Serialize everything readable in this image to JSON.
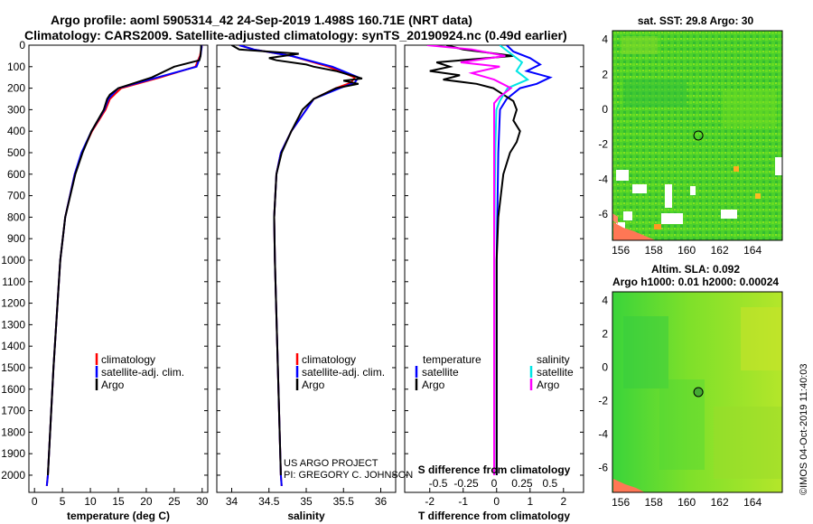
{
  "header": {
    "line1": "Argo profile: aoml 5905314_42 24-Sep-2019 1.498S 160.71E (NRT data)",
    "line2": "Climatology: CARS2009. Satellite-adjusted climatology: synTS_20190924.nc (0.49d earlier)"
  },
  "credits": {
    "project": "US ARGO PROJECT",
    "pi": "PI: GREGORY C. JOHNSON",
    "stamp": "©IMOS 04-Oct-2019 11:40:03"
  },
  "colors": {
    "climatology": "#ff0000",
    "satellite": "#0000ff",
    "argo": "#000000",
    "sal_satellite": "#00e5e5",
    "sal_argo": "#ff00ff",
    "map_green": "#44cc22"
  },
  "chart_data": [
    {
      "id": "temperature",
      "type": "line",
      "xlabel": "temperature (deg C)",
      "ylabel": "",
      "xlim": [
        -1,
        31
      ],
      "ylim": [
        2080,
        0
      ],
      "xticks": [
        "0",
        "5",
        "10",
        "15",
        "20",
        "25",
        "30"
      ],
      "yticks": [
        "0",
        "100",
        "200",
        "300",
        "400",
        "500",
        "600",
        "700",
        "800",
        "900",
        "1000",
        "1100",
        "1200",
        "1300",
        "1400",
        "1500",
        "1600",
        "1700",
        "1800",
        "1900",
        "2000"
      ],
      "legend": [
        "climatology",
        "satellite-adj. clim.",
        "Argo"
      ],
      "series": [
        {
          "name": "climatology",
          "depth": [
            0,
            10,
            50,
            100,
            150,
            200,
            250,
            300,
            400,
            500,
            600,
            800,
            1000,
            1500,
            2000,
            2050
          ],
          "values": [
            29.9,
            29.9,
            29.6,
            28.8,
            22.5,
            15.5,
            13.5,
            12.7,
            10.3,
            8.5,
            7.2,
            5.5,
            4.6,
            3.4,
            2.4,
            2.2
          ]
        },
        {
          "name": "satellite-adj. clim.",
          "depth": [
            0,
            10,
            50,
            100,
            150,
            200,
            250,
            300,
            400,
            500,
            600,
            800,
            1000,
            1500,
            2000,
            2050
          ],
          "values": [
            29.9,
            29.9,
            29.7,
            29.0,
            22.0,
            15.0,
            13.2,
            12.5,
            10.2,
            8.4,
            7.2,
            5.5,
            4.6,
            3.4,
            2.4,
            2.2
          ]
        },
        {
          "name": "Argo",
          "depth": [
            0,
            10,
            50,
            70,
            100,
            150,
            200,
            230,
            250,
            300,
            400,
            500,
            600,
            800,
            1000,
            1500,
            2000
          ],
          "values": [
            29.8,
            29.8,
            29.7,
            29.5,
            25.0,
            21.0,
            15.0,
            13.5,
            13.0,
            12.4,
            10.2,
            8.6,
            7.3,
            5.5,
            4.6,
            3.4,
            2.4
          ]
        }
      ]
    },
    {
      "id": "salinity",
      "type": "line",
      "xlabel": "salinity",
      "xlim": [
        33.8,
        36.2
      ],
      "ylim": [
        2080,
        0
      ],
      "xticks": [
        "34",
        "34.5",
        "35",
        "35.5",
        "36"
      ],
      "legend": [
        "climatology",
        "satellite-adj. clim.",
        "Argo"
      ],
      "series": [
        {
          "name": "climatology",
          "depth": [
            0,
            20,
            50,
            100,
            150,
            175,
            200,
            250,
            300,
            400,
            500,
            600,
            800,
            1000,
            1500,
            2000,
            2050
          ],
          "values": [
            34.1,
            34.3,
            34.8,
            35.3,
            35.65,
            35.6,
            35.4,
            35.1,
            35.0,
            34.8,
            34.66,
            34.6,
            34.57,
            34.58,
            34.62,
            34.66,
            34.67
          ]
        },
        {
          "name": "satellite-adj. clim.",
          "depth": [
            0,
            20,
            50,
            100,
            150,
            175,
            200,
            250,
            300,
            400,
            500,
            600,
            800,
            1000,
            1500,
            2000,
            2050
          ],
          "values": [
            34.1,
            34.3,
            34.8,
            35.35,
            35.7,
            35.65,
            35.45,
            35.1,
            35.0,
            34.8,
            34.66,
            34.6,
            34.57,
            34.58,
            34.62,
            34.66,
            34.67
          ]
        },
        {
          "name": "Argo",
          "depth": [
            0,
            20,
            40,
            60,
            70,
            90,
            100,
            120,
            140,
            155,
            165,
            180,
            200,
            250,
            300,
            400,
            500,
            600,
            800,
            1000,
            1500,
            2000
          ],
          "values": [
            34.0,
            34.1,
            34.9,
            34.5,
            34.6,
            35.0,
            35.1,
            35.4,
            35.6,
            35.75,
            35.5,
            35.7,
            35.4,
            35.1,
            34.95,
            34.8,
            34.67,
            34.6,
            34.57,
            34.58,
            34.62,
            34.66
          ]
        }
      ]
    },
    {
      "id": "difference",
      "type": "line",
      "xlabel": "T difference from climatology",
      "x2label": "S difference from climatology",
      "xlim": [
        -2.75,
        2.6
      ],
      "x2lim": [
        -0.8,
        0.8
      ],
      "ylim": [
        2080,
        0
      ],
      "xticks": [
        "-2",
        "-1",
        "0",
        "1",
        "2"
      ],
      "x2ticks": [
        "-0.5",
        "-0.25",
        "0",
        "0.25",
        "0.5"
      ],
      "legend_headers": [
        "temperature",
        "salinity"
      ],
      "legend_left": [
        "satellite",
        "Argo"
      ],
      "legend_right": [
        "satellite",
        "Argo"
      ],
      "series": [
        {
          "name": "T satellite",
          "depth": [
            0,
            30,
            60,
            90,
            120,
            150,
            180,
            200,
            250,
            300,
            500,
            1000,
            2000
          ],
          "values": [
            0.3,
            0.5,
            1.0,
            1.3,
            0.9,
            1.6,
            1.2,
            0.7,
            0.3,
            0.1,
            0.05,
            0.0,
            0.0
          ]
        },
        {
          "name": "T Argo",
          "depth": [
            0,
            20,
            50,
            80,
            100,
            120,
            140,
            160,
            180,
            200,
            230,
            260,
            300,
            350,
            400,
            450,
            500,
            600,
            800,
            1000,
            2000
          ],
          "values": [
            -1.5,
            -1.0,
            0.5,
            -1.8,
            -1.4,
            -2.0,
            -1.1,
            -1.6,
            -0.6,
            -0.1,
            0.2,
            0.5,
            0.6,
            0.5,
            0.7,
            0.6,
            0.4,
            0.2,
            0.05,
            0.0,
            0.0
          ]
        },
        {
          "name": "S satellite",
          "depth": [
            0,
            40,
            80,
            120,
            160,
            200,
            260,
            300,
            500,
            1000,
            2000
          ],
          "values": [
            0.05,
            0.15,
            0.25,
            0.2,
            0.3,
            0.12,
            0.05,
            0.02,
            0.01,
            0.0,
            0.0
          ]
        },
        {
          "name": "S Argo",
          "depth": [
            0,
            20,
            50,
            80,
            100,
            130,
            160,
            200,
            240,
            270,
            300,
            500,
            1000,
            2000
          ],
          "values": [
            -0.6,
            -0.2,
            0.1,
            -0.3,
            0.05,
            -0.2,
            0.0,
            0.15,
            0.05,
            0.0,
            0.0,
            0.0,
            0.0,
            0.0
          ]
        }
      ]
    },
    {
      "id": "sst_map",
      "type": "heatmap",
      "title": "sat. SST: 29.8 Argo: 30",
      "xticks": [
        "156",
        "158",
        "160",
        "162",
        "164"
      ],
      "yticks": [
        "4",
        "2",
        "0",
        "-2",
        "-4",
        "-6"
      ],
      "xlim": [
        155.5,
        165.8
      ],
      "ylim": [
        -7.5,
        4.5
      ],
      "marker": {
        "lon": 160.71,
        "lat": -1.498
      }
    },
    {
      "id": "sla_map",
      "type": "heatmap",
      "title": "Altim. SLA: 0.092",
      "subtitle": "Argo h1000: 0.01 h2000: 0.00024",
      "xticks": [
        "156",
        "158",
        "160",
        "162",
        "164"
      ],
      "yticks": [
        "4",
        "2",
        "0",
        "-2",
        "-4",
        "-6"
      ],
      "xlim": [
        155.5,
        165.8
      ],
      "ylim": [
        -7.5,
        4.5
      ],
      "marker": {
        "lon": 160.71,
        "lat": -1.498
      }
    }
  ]
}
